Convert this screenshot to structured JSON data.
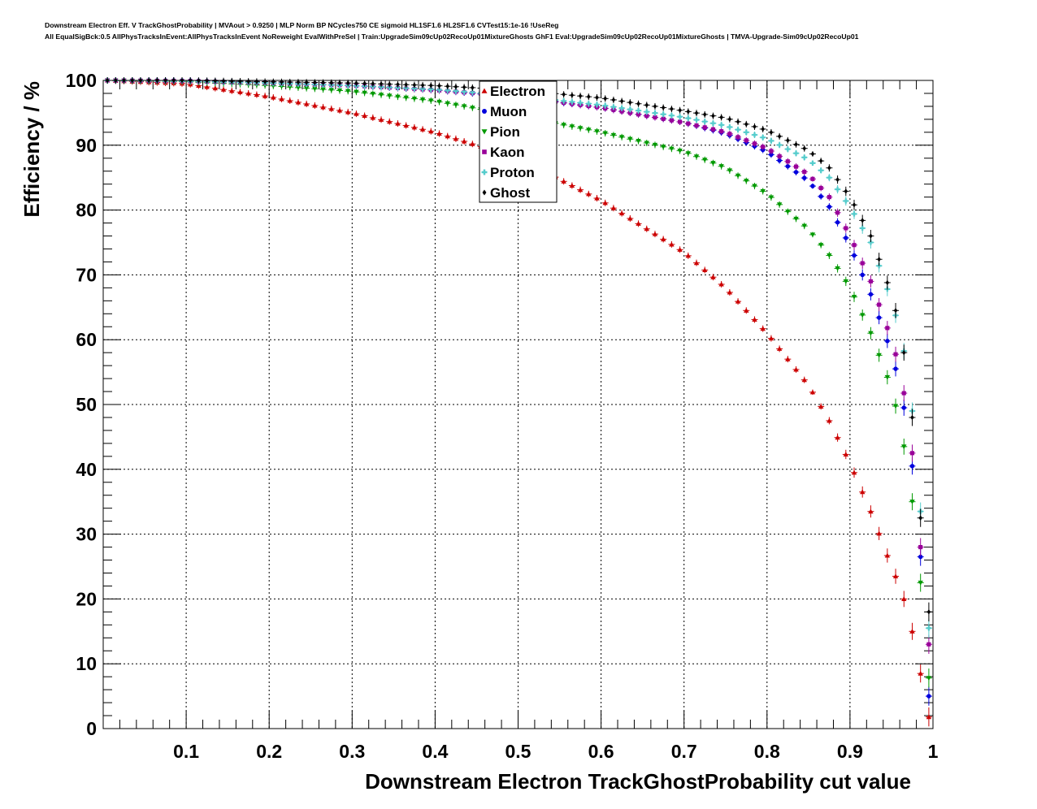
{
  "chart_data": {
    "type": "scatter",
    "title_line1": "Downstream Electron Eff. V TrackGhostProbability | MVAout > 0.9250 | MLP Norm BP NCycles750 CE sigmoid HL1SF1.6 HL2SF1.6 CVTest15:1e-16 !UseReg",
    "title_line2": "All EqualSigBck:0.5 AllPhysTracksInEvent:AllPhysTracksInEvent NoReweight EvalWithPreSel | Train:UpgradeSim09cUp02RecoUp01MixtureGhosts GhF1 Eval:UpgradeSim09cUp02RecoUp01MixtureGhosts | TMVA-Upgrade-Sim09cUp02RecoUp01",
    "xlabel": "Downstream Electron TrackGhostProbability cut value",
    "ylabel": "Efficiency / %",
    "xlim": [
      0,
      1
    ],
    "ylim": [
      0,
      100
    ],
    "x_ticks": [
      "0.1",
      "0.2",
      "0.3",
      "0.4",
      "0.5",
      "0.6",
      "0.7",
      "0.8",
      "0.9",
      "1"
    ],
    "y_ticks": [
      "0",
      "10",
      "20",
      "30",
      "40",
      "50",
      "60",
      "70",
      "80",
      "90",
      "100"
    ],
    "grid": true,
    "legend_position": "top-center",
    "x_sample": [
      0.005,
      0.1,
      0.2,
      0.3,
      0.4,
      0.5,
      0.6,
      0.7,
      0.75,
      0.8,
      0.85,
      0.875,
      0.9,
      0.925,
      0.95,
      0.96,
      0.97,
      0.98,
      0.99,
      0.995
    ],
    "series": [
      {
        "name": "Electron",
        "color": "#cc0000",
        "marker": "triangle-up",
        "values": [
          100.0,
          99.5,
          97.5,
          95.0,
          92.0,
          88.0,
          81.5,
          73.5,
          68.0,
          61.0,
          53.0,
          47.5,
          41.0,
          33.5,
          25.0,
          22.0,
          18.0,
          12.0,
          5.0,
          1.8
        ]
      },
      {
        "name": "Muon",
        "color": "#0000dd",
        "marker": "circle",
        "values": [
          100.0,
          100.0,
          99.6,
          99.2,
          98.5,
          97.4,
          95.8,
          93.5,
          91.8,
          89.0,
          84.5,
          80.5,
          74.5,
          67.0,
          58.0,
          53.0,
          46.0,
          35.0,
          18.0,
          5.0
        ]
      },
      {
        "name": "Pion",
        "color": "#009900",
        "marker": "triangle-down",
        "values": [
          100.0,
          99.8,
          99.2,
          98.3,
          96.8,
          94.5,
          92.0,
          89.0,
          86.5,
          82.5,
          77.0,
          73.0,
          68.0,
          61.0,
          52.5,
          47.0,
          40.0,
          30.0,
          15.0,
          7.8
        ]
      },
      {
        "name": "Kaon",
        "color": "#990099",
        "marker": "square",
        "values": [
          100.0,
          99.9,
          99.6,
          99.2,
          98.5,
          97.5,
          95.8,
          93.5,
          92.0,
          89.5,
          85.5,
          82.0,
          76.0,
          69.0,
          60.0,
          55.5,
          48.0,
          37.0,
          19.0,
          13.0
        ]
      },
      {
        "name": "Proton",
        "color": "#55cccc",
        "marker": "cross",
        "values": [
          100.0,
          99.9,
          99.6,
          99.2,
          98.6,
          97.6,
          96.2,
          94.3,
          93.0,
          91.0,
          87.8,
          85.0,
          80.5,
          75.0,
          66.0,
          61.5,
          55.0,
          43.0,
          24.0,
          15.5
        ]
      },
      {
        "name": "Ghost",
        "color": "#000000",
        "marker": "diamond",
        "values": [
          100.0,
          100.0,
          99.8,
          99.6,
          99.2,
          98.5,
          97.3,
          95.3,
          94.2,
          92.3,
          89.2,
          86.5,
          82.0,
          76.0,
          67.0,
          62.0,
          54.0,
          42.0,
          23.0,
          18.0
        ]
      }
    ]
  }
}
